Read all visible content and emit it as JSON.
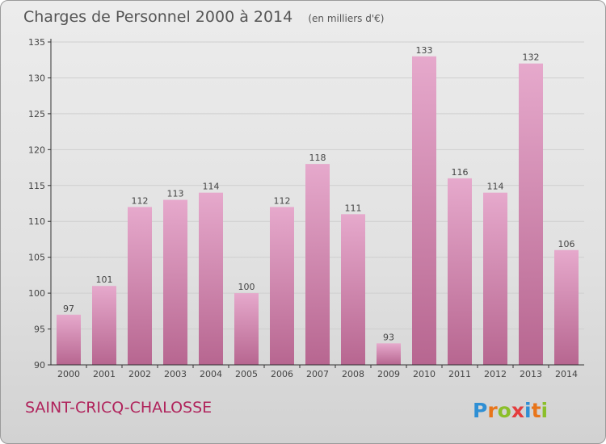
{
  "chart_data": {
    "type": "bar",
    "title": "Charges de Personnel 2000 à 2014",
    "subtitle": "(en milliers d'€)",
    "xlabel": "",
    "ylabel": "",
    "categories": [
      "2000",
      "2001",
      "2002",
      "2003",
      "2004",
      "2005",
      "2006",
      "2007",
      "2008",
      "2009",
      "2010",
      "2011",
      "2012",
      "2013",
      "2014"
    ],
    "values": [
      97,
      101,
      112,
      113,
      114,
      100,
      112,
      118,
      111,
      93,
      133,
      116,
      114,
      132,
      106
    ],
    "ylim": [
      90,
      135
    ],
    "yticks": [
      90,
      95,
      100,
      105,
      110,
      115,
      120,
      125,
      130,
      135
    ],
    "grid": true,
    "legend": "none"
  },
  "location": "SAINT-CRICQ-CHALOSSE",
  "brand": {
    "name": "Proxiti",
    "letters": [
      "P",
      "r",
      "o",
      "x",
      "i",
      "t",
      "i"
    ],
    "letter_colors": [
      "#2f8fd4",
      "#e8751a",
      "#8bbf2a",
      "#e43d3d",
      "#2f8fd4",
      "#e8751a",
      "#8bbf2a"
    ]
  },
  "colors": {
    "bar_top": "#e6a9cc",
    "bar_bottom": "#b76690",
    "grid": "#cfcfcf",
    "axis": "#333333",
    "location": "#b0245c"
  }
}
